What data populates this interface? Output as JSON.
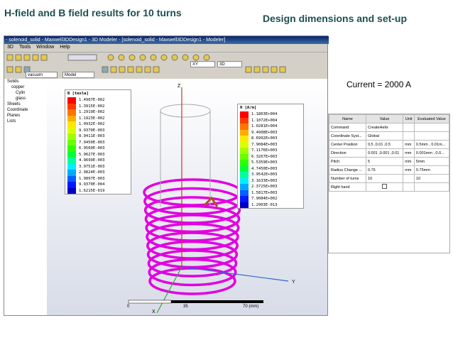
{
  "slide": {
    "title": "H-field and B field results for 10 turns",
    "subtitle": "Design dimensions and set-up",
    "current": "Current = 2000 A"
  },
  "window": {
    "title": "- solenoid_solid - Maxwell3DDesign1 - 3D Modeler - [solenoid_solid - Maxwell3DDesign1 - Modeler]",
    "menus": [
      "3D",
      "Tools",
      "Window",
      "Help"
    ],
    "dropdowns": [
      "vacuum",
      "Model",
      "XY",
      "3D"
    ]
  },
  "tree": [
    "Solids",
    "copper",
    "Cylin",
    "glass",
    "Sheets",
    "Coordinate",
    "Planes",
    "Lists"
  ],
  "legend_b": {
    "title": "B [tesla]",
    "values": [
      "1.4907E-002",
      "1.3915E-002",
      "1.2919E-002",
      "1.1923E-002",
      "1.0932E-002",
      "9.9370E-003",
      "8.9411E-003",
      "7.9450E-003",
      "6.9560E-003",
      "5.9627E-003",
      "4.9699E-003",
      "3.9751E-003",
      "2.9824E-003",
      "1.9897E-003",
      "9.9370E-004",
      "1.6215E-019"
    ]
  },
  "legend_h": {
    "title": "H [A/m]",
    "values": [
      "1.1863E+004",
      "1.1072E+004",
      "1.0281E+004",
      "9.4908E+003",
      "8.6992E+003",
      "7.9084E+003",
      "7.1176E+003",
      "6.3267E+003",
      "5.5359E+003",
      "4.7450E+003",
      "3.9542E+003",
      "3.1633E+003",
      "2.3725E+003",
      "1.5817E+003",
      "7.9084E+002",
      "1.2903E-013"
    ]
  },
  "axes": [
    "Z",
    "Y",
    "X"
  ],
  "scale": [
    "0",
    "35",
    "70 (mm)"
  ],
  "table": {
    "header": [
      "Name",
      "Value",
      "Unit",
      "Evaluated Value"
    ],
    "rows": [
      [
        "Command",
        "CreateHelix",
        "",
        ""
      ],
      [
        "Coordinate Syst...",
        "Global",
        "",
        ""
      ],
      [
        "Center Position",
        "0.5 ,0.01 ,0.5",
        "mm",
        "0.5mm , 0.01m..."
      ],
      [
        "Direction",
        "0.001 ,0.001 ,0.01",
        "mm",
        "0.001mm , 0.0..."
      ],
      [
        "Pitch",
        "5",
        "mm",
        "5mm"
      ],
      [
        "Radius Change ...",
        "0.75",
        "mm",
        "0.75mm"
      ],
      [
        "Number of turns",
        "10",
        "",
        "10"
      ],
      [
        "Right hand",
        "",
        "",
        ""
      ]
    ]
  }
}
